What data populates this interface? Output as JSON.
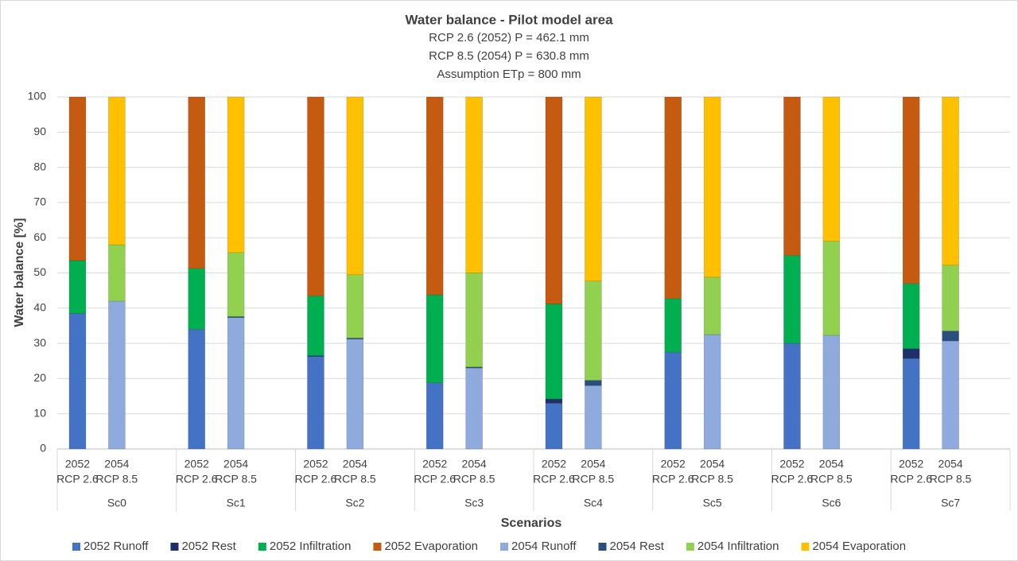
{
  "chart_data": {
    "type": "stacked_bar",
    "title": "Water balance - Pilot model area",
    "subtitle": [
      "RCP 2.6 (2052) P = 462.1 mm",
      "RCP 8.5 (2054) P = 630.8 mm",
      "Assumption ETp = 800 mm"
    ],
    "x_label": "Scenarios",
    "y_label": "Water balance [%]",
    "groups": [
      "Sc0",
      "Sc1",
      "Sc2",
      "Sc3",
      "Sc4",
      "Sc5",
      "Sc6",
      "Sc7"
    ],
    "categories": [
      [
        "2052",
        "RCP 2.6"
      ],
      [
        "2054",
        "RCP 8.5"
      ],
      [
        "2052",
        "RCP 2.6"
      ],
      [
        "2054",
        "RCP 8.5"
      ],
      [
        "2052",
        "RCP 2.6"
      ],
      [
        "2054",
        "RCP 8.5"
      ],
      [
        "2052",
        "RCP 2.6"
      ],
      [
        "2054",
        "RCP 8.5"
      ],
      [
        "2052",
        "RCP 2.6"
      ],
      [
        "2054",
        "RCP 8.5"
      ],
      [
        "2052",
        "RCP 2.6"
      ],
      [
        "2054",
        "RCP 8.5"
      ],
      [
        "2052",
        "RCP 2.6"
      ],
      [
        "2054",
        "RCP 8.5"
      ],
      [
        "2052",
        "RCP 2.6"
      ],
      [
        "2054",
        "RCP 8.5"
      ]
    ],
    "series": [
      {
        "name": "2052 Runoff",
        "color": "#4472c4",
        "values": [
          38.5,
          null,
          34,
          null,
          26.3,
          null,
          18.8,
          null,
          13,
          null,
          27.5,
          null,
          30,
          null,
          25.7,
          null
        ]
      },
      {
        "name": "2052 Rest",
        "color": "#1f2f6b",
        "values": [
          0,
          null,
          0,
          null,
          0.2,
          null,
          0,
          null,
          1.2,
          null,
          0,
          null,
          0,
          null,
          2.8,
          null
        ]
      },
      {
        "name": "2052 Infiltration",
        "color": "#00b050",
        "values": [
          15,
          null,
          17.3,
          null,
          17,
          null,
          25,
          null,
          27,
          null,
          15.2,
          null,
          25,
          null,
          18.5,
          null
        ]
      },
      {
        "name": "2052 Evaporation",
        "color": "#c55a11",
        "values": [
          46.5,
          null,
          48.7,
          null,
          56.5,
          null,
          56.2,
          null,
          58.8,
          null,
          57.3,
          null,
          45,
          null,
          53,
          null
        ]
      },
      {
        "name": "2054 Runoff",
        "color": "#8faadc",
        "values": [
          null,
          42,
          null,
          37.3,
          null,
          31.2,
          null,
          23,
          null,
          18,
          null,
          32.5,
          null,
          32.3,
          null,
          30.7
        ]
      },
      {
        "name": "2054 Rest",
        "color": "#2a4f7e",
        "values": [
          null,
          0,
          null,
          0.3,
          null,
          0.3,
          null,
          0.3,
          null,
          1.5,
          null,
          0,
          null,
          0,
          null,
          2.8
        ]
      },
      {
        "name": "2054 Infiltration",
        "color": "#92d050",
        "values": [
          null,
          16,
          null,
          18.2,
          null,
          18,
          null,
          26.7,
          null,
          28.2,
          null,
          16.3,
          null,
          26.7,
          null,
          18.7
        ]
      },
      {
        "name": "2054 Evaporation",
        "color": "#ffc000",
        "values": [
          null,
          42,
          null,
          44.2,
          null,
          50.5,
          null,
          50,
          null,
          52.3,
          null,
          51.2,
          null,
          41,
          null,
          47.8
        ]
      }
    ],
    "ylim": [
      0,
      100
    ],
    "yticks": [
      0,
      10,
      20,
      30,
      40,
      50,
      60,
      70,
      80,
      90,
      100
    ],
    "grid": true,
    "legend": "bottom"
  }
}
